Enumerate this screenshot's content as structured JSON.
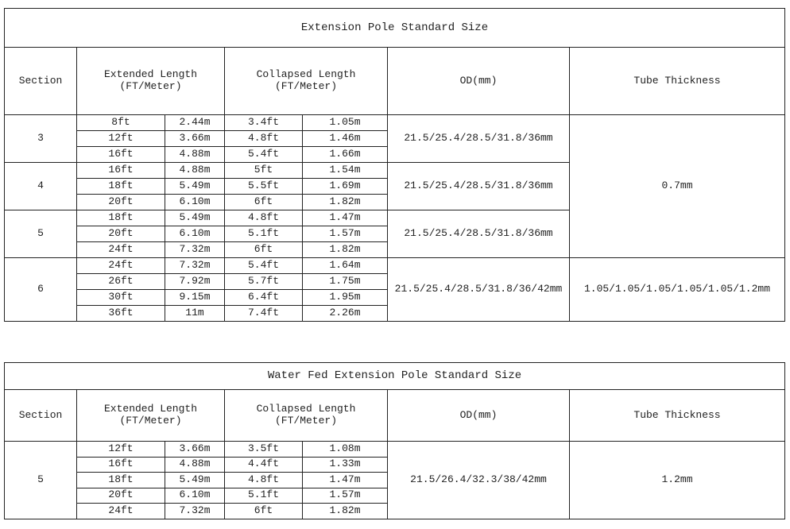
{
  "tables": [
    {
      "title": "Extension Pole Standard Size",
      "headers": {
        "section": "Section",
        "extended": "Extended Length\n(FT/Meter)",
        "collapsed": "Collapsed Length\n(FT/Meter)",
        "od": "OD(mm)",
        "thickness": "Tube Thickness"
      },
      "groups": [
        {
          "section": "3",
          "od": "21.5/25.4/28.5/31.8/36mm",
          "rows": [
            [
              "8ft",
              "2.44m",
              "3.4ft",
              "1.05m"
            ],
            [
              "12ft",
              "3.66m",
              "4.8ft",
              "1.46m"
            ],
            [
              "16ft",
              "4.88m",
              "5.4ft",
              "1.66m"
            ]
          ]
        },
        {
          "section": "4",
          "od": "21.5/25.4/28.5/31.8/36mm",
          "rows": [
            [
              "16ft",
              "4.88m",
              "5ft",
              "1.54m"
            ],
            [
              "18ft",
              "5.49m",
              "5.5ft",
              "1.69m"
            ],
            [
              "20ft",
              "6.10m",
              "6ft",
              "1.82m"
            ]
          ]
        },
        {
          "section": "5",
          "od": "21.5/25.4/28.5/31.8/36mm",
          "rows": [
            [
              "18ft",
              "5.49m",
              "4.8ft",
              "1.47m"
            ],
            [
              "20ft",
              "6.10m",
              "5.1ft",
              "1.57m"
            ],
            [
              "24ft",
              "7.32m",
              "6ft",
              "1.82m"
            ]
          ]
        },
        {
          "section": "6",
          "od": "21.5/25.4/28.5/31.8/36/42mm",
          "thickness": "1.05/1.05/1.05/1.05/1.05/1.2mm",
          "rows": [
            [
              "24ft",
              "7.32m",
              "5.4ft",
              "1.64m"
            ],
            [
              "26ft",
              "7.92m",
              "5.7ft",
              "1.75m"
            ],
            [
              "30ft",
              "9.15m",
              "6.4ft",
              "1.95m"
            ],
            [
              "36ft",
              "11m",
              "7.4ft",
              "2.26m"
            ]
          ]
        }
      ],
      "shared_thickness": {
        "value": "0.7mm",
        "span_groups": 3
      }
    },
    {
      "title": "Water Fed Extension Pole Standard Size",
      "headers": {
        "section": "Section",
        "extended": "Extended Length\n(FT/Meter)",
        "collapsed": "Collapsed Length\n(FT/Meter)",
        "od": "OD(mm)",
        "thickness": "Tube Thickness"
      },
      "groups": [
        {
          "section": "5",
          "od": "21.5/26.4/32.3/38/42mm",
          "thickness": "1.2mm",
          "rows": [
            [
              "12ft",
              "3.66m",
              "3.5ft",
              "1.08m"
            ],
            [
              "16ft",
              "4.88m",
              "4.4ft",
              "1.33m"
            ],
            [
              "18ft",
              "5.49m",
              "4.8ft",
              "1.47m"
            ],
            [
              "20ft",
              "6.10m",
              "5.1ft",
              "1.57m"
            ],
            [
              "24ft",
              "7.32m",
              "6ft",
              "1.82m"
            ]
          ]
        }
      ]
    }
  ]
}
